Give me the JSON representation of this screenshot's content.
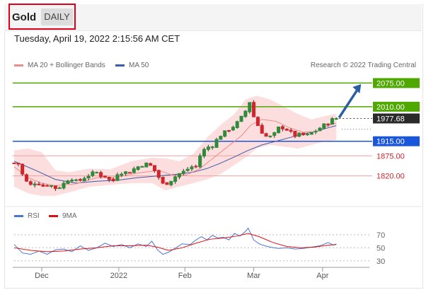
{
  "header": {
    "asset": "Gold",
    "timeframe": "DAILY",
    "datetime": "Tuesday, April 19, 2022 2:15:56 AM CET"
  },
  "legend": {
    "ma20_label": "MA 20 + Bollinger Bands",
    "ma50_label": "MA 50",
    "credit": "Research © 2022 Trading Central",
    "rsi_label": "RSI",
    "rsi_ma_label": "9MA"
  },
  "colors": {
    "up": "#2e8b3a",
    "down": "#d3242b",
    "ma20": "#f08a8a",
    "ma50": "#3a5ba8",
    "bollinger": "#fbd3d3",
    "resistance": "#4ea800",
    "support": "#f0a0a0",
    "pivot": "#1a56db",
    "arrow": "#2b5fa3",
    "rsi": "#4a74d8",
    "rsi_ma": "#e01010"
  },
  "chart_data": [
    {
      "type": "candlestick",
      "title": "Gold",
      "ylim": [
        1755,
        2105
      ],
      "x_tick_labels": [
        "Dec",
        "2022",
        "Feb",
        "Mar",
        "Apr"
      ],
      "current_price": "1977.68",
      "levels": [
        {
          "value": 2075,
          "label": "2075.00",
          "kind": "resistance"
        },
        {
          "value": 2010,
          "label": "2010.00",
          "kind": "resistance"
        },
        {
          "value": 1915,
          "label": "1915.00",
          "kind": "pivot"
        },
        {
          "value": 1875,
          "label": "1875.00",
          "kind": "support"
        },
        {
          "value": 1820,
          "label": "1820.00",
          "kind": "support"
        }
      ],
      "close_path": [
        [
          0,
          1855
        ],
        [
          4,
          1852
        ],
        [
          7,
          1810
        ],
        [
          12,
          1795
        ],
        [
          16,
          1802
        ],
        [
          21,
          1792
        ],
        [
          25,
          1797
        ],
        [
          30,
          1786
        ],
        [
          34,
          1790
        ],
        [
          38,
          1808
        ],
        [
          42,
          1812
        ],
        [
          46,
          1803
        ],
        [
          51,
          1815
        ],
        [
          55,
          1823
        ],
        [
          59,
          1832
        ],
        [
          63,
          1820
        ],
        [
          67,
          1818
        ],
        [
          71,
          1800
        ],
        [
          75,
          1826
        ],
        [
          80,
          1830
        ],
        [
          84,
          1830
        ],
        [
          88,
          1842
        ],
        [
          92,
          1848
        ],
        [
          96,
          1853
        ],
        [
          100,
          1846
        ],
        [
          104,
          1822
        ],
        [
          108,
          1798
        ],
        [
          112,
          1800
        ],
        [
          116,
          1815
        ],
        [
          120,
          1826
        ],
        [
          124,
          1833
        ],
        [
          128,
          1844
        ],
        [
          132,
          1846
        ],
        [
          136,
          1885
        ],
        [
          140,
          1898
        ],
        [
          144,
          1903
        ],
        [
          148,
          1924
        ],
        [
          152,
          1938
        ],
        [
          156,
          1947
        ],
        [
          160,
          1958
        ],
        [
          164,
          1975
        ],
        [
          168,
          1998
        ],
        [
          170,
          2046
        ],
        [
          172,
          2000
        ],
        [
          176,
          1965
        ],
        [
          180,
          1940
        ],
        [
          184,
          1925
        ],
        [
          188,
          1930
        ],
        [
          192,
          1952
        ],
        [
          196,
          1952
        ],
        [
          200,
          1942
        ],
        [
          204,
          1930
        ],
        [
          208,
          1935
        ],
        [
          212,
          1930
        ],
        [
          216,
          1938
        ],
        [
          220,
          1945
        ],
        [
          224,
          1958
        ],
        [
          228,
          1965
        ],
        [
          231,
          1975
        ],
        [
          234,
          1977.68
        ]
      ],
      "ma20_path": [
        [
          0,
          1845
        ],
        [
          10,
          1815
        ],
        [
          20,
          1800
        ],
        [
          30,
          1793
        ],
        [
          45,
          1798
        ],
        [
          60,
          1815
        ],
        [
          75,
          1817
        ],
        [
          90,
          1828
        ],
        [
          105,
          1835
        ],
        [
          115,
          1822
        ],
        [
          125,
          1822
        ],
        [
          135,
          1840
        ],
        [
          145,
          1870
        ],
        [
          155,
          1900
        ],
        [
          165,
          1930
        ],
        [
          172,
          1960
        ],
        [
          180,
          1975
        ],
        [
          190,
          1970
        ],
        [
          200,
          1952
        ],
        [
          210,
          1940
        ],
        [
          220,
          1942
        ],
        [
          228,
          1958
        ],
        [
          234,
          1965
        ]
      ],
      "ma50_path": [
        [
          0,
          1860
        ],
        [
          15,
          1836
        ],
        [
          30,
          1810
        ],
        [
          45,
          1800
        ],
        [
          60,
          1805
        ],
        [
          75,
          1808
        ],
        [
          90,
          1815
        ],
        [
          105,
          1820
        ],
        [
          120,
          1825
        ],
        [
          130,
          1830
        ],
        [
          140,
          1840
        ],
        [
          150,
          1855
        ],
        [
          160,
          1872
        ],
        [
          170,
          1890
        ],
        [
          180,
          1905
        ],
        [
          190,
          1915
        ],
        [
          200,
          1925
        ],
        [
          210,
          1935
        ],
        [
          220,
          1943
        ],
        [
          228,
          1952
        ],
        [
          234,
          1958
        ]
      ],
      "bollinger_upper": [
        [
          0,
          1890
        ],
        [
          10,
          1895
        ],
        [
          20,
          1885
        ],
        [
          30,
          1835
        ],
        [
          40,
          1830
        ],
        [
          55,
          1840
        ],
        [
          70,
          1838
        ],
        [
          85,
          1860
        ],
        [
          100,
          1870
        ],
        [
          110,
          1868
        ],
        [
          120,
          1860
        ],
        [
          130,
          1880
        ],
        [
          140,
          1925
        ],
        [
          150,
          1960
        ],
        [
          160,
          1990
        ],
        [
          168,
          2030
        ],
        [
          176,
          2040
        ],
        [
          186,
          2030
        ],
        [
          196,
          2010
        ],
        [
          206,
          1990
        ],
        [
          216,
          1975
        ],
        [
          226,
          1985
        ],
        [
          234,
          1990
        ]
      ],
      "bollinger_lower": [
        [
          0,
          1790
        ],
        [
          10,
          1772
        ],
        [
          20,
          1765
        ],
        [
          30,
          1765
        ],
        [
          40,
          1775
        ],
        [
          55,
          1790
        ],
        [
          70,
          1795
        ],
        [
          85,
          1800
        ],
        [
          100,
          1800
        ],
        [
          110,
          1780
        ],
        [
          120,
          1790
        ],
        [
          130,
          1800
        ],
        [
          140,
          1810
        ],
        [
          150,
          1825
        ],
        [
          160,
          1850
        ],
        [
          168,
          1870
        ],
        [
          176,
          1895
        ],
        [
          186,
          1905
        ],
        [
          196,
          1900
        ],
        [
          206,
          1895
        ],
        [
          216,
          1905
        ],
        [
          226,
          1915
        ],
        [
          234,
          1918
        ]
      ],
      "forecast_arrow": {
        "from": [
          236,
          1980
        ],
        "to": [
          252,
          2072
        ]
      }
    },
    {
      "type": "line",
      "title": "RSI",
      "ylim": [
        20,
        85
      ],
      "y_tick_labels": [
        "70",
        "50",
        "30"
      ],
      "series": [
        {
          "name": "RSI",
          "values": [
            [
              0,
              55
            ],
            [
              6,
              42
            ],
            [
              12,
              40
            ],
            [
              18,
              45
            ],
            [
              24,
              40
            ],
            [
              30,
              47
            ],
            [
              36,
              48
            ],
            [
              42,
              44
            ],
            [
              48,
              53
            ],
            [
              54,
              46
            ],
            [
              60,
              50
            ],
            [
              66,
              57
            ],
            [
              72,
              52
            ],
            [
              78,
              55
            ],
            [
              84,
              50
            ],
            [
              90,
              56
            ],
            [
              96,
              52
            ],
            [
              100,
              60
            ],
            [
              104,
              47
            ],
            [
              108,
              40
            ],
            [
              112,
              43
            ],
            [
              116,
              48
            ],
            [
              122,
              56
            ],
            [
              128,
              55
            ],
            [
              132,
              62
            ],
            [
              136,
              67
            ],
            [
              140,
              62
            ],
            [
              144,
              69
            ],
            [
              148,
              65
            ],
            [
              152,
              66
            ],
            [
              156,
              62
            ],
            [
              160,
              72
            ],
            [
              164,
              68
            ],
            [
              168,
              75
            ],
            [
              170,
              80
            ],
            [
              174,
              62
            ],
            [
              178,
              56
            ],
            [
              182,
              53
            ],
            [
              186,
              51
            ],
            [
              192,
              49
            ],
            [
              198,
              50
            ],
            [
              204,
              48
            ],
            [
              210,
              49
            ],
            [
              216,
              51
            ],
            [
              222,
              53
            ],
            [
              228,
              58
            ],
            [
              232,
              54
            ],
            [
              234,
              56
            ]
          ]
        },
        {
          "name": "9MA",
          "values": [
            [
              0,
              50
            ],
            [
              12,
              46
            ],
            [
              24,
              44
            ],
            [
              36,
              45
            ],
            [
              48,
              48
            ],
            [
              60,
              50
            ],
            [
              72,
              53
            ],
            [
              84,
              53
            ],
            [
              96,
              54
            ],
            [
              104,
              51
            ],
            [
              112,
              46
            ],
            [
              122,
              50
            ],
            [
              132,
              57
            ],
            [
              142,
              63
            ],
            [
              152,
              65
            ],
            [
              162,
              68
            ],
            [
              170,
              72
            ],
            [
              178,
              67
            ],
            [
              188,
              58
            ],
            [
              198,
              52
            ],
            [
              208,
              50
            ],
            [
              218,
              51
            ],
            [
              228,
              54
            ],
            [
              234,
              55
            ]
          ]
        }
      ]
    }
  ]
}
